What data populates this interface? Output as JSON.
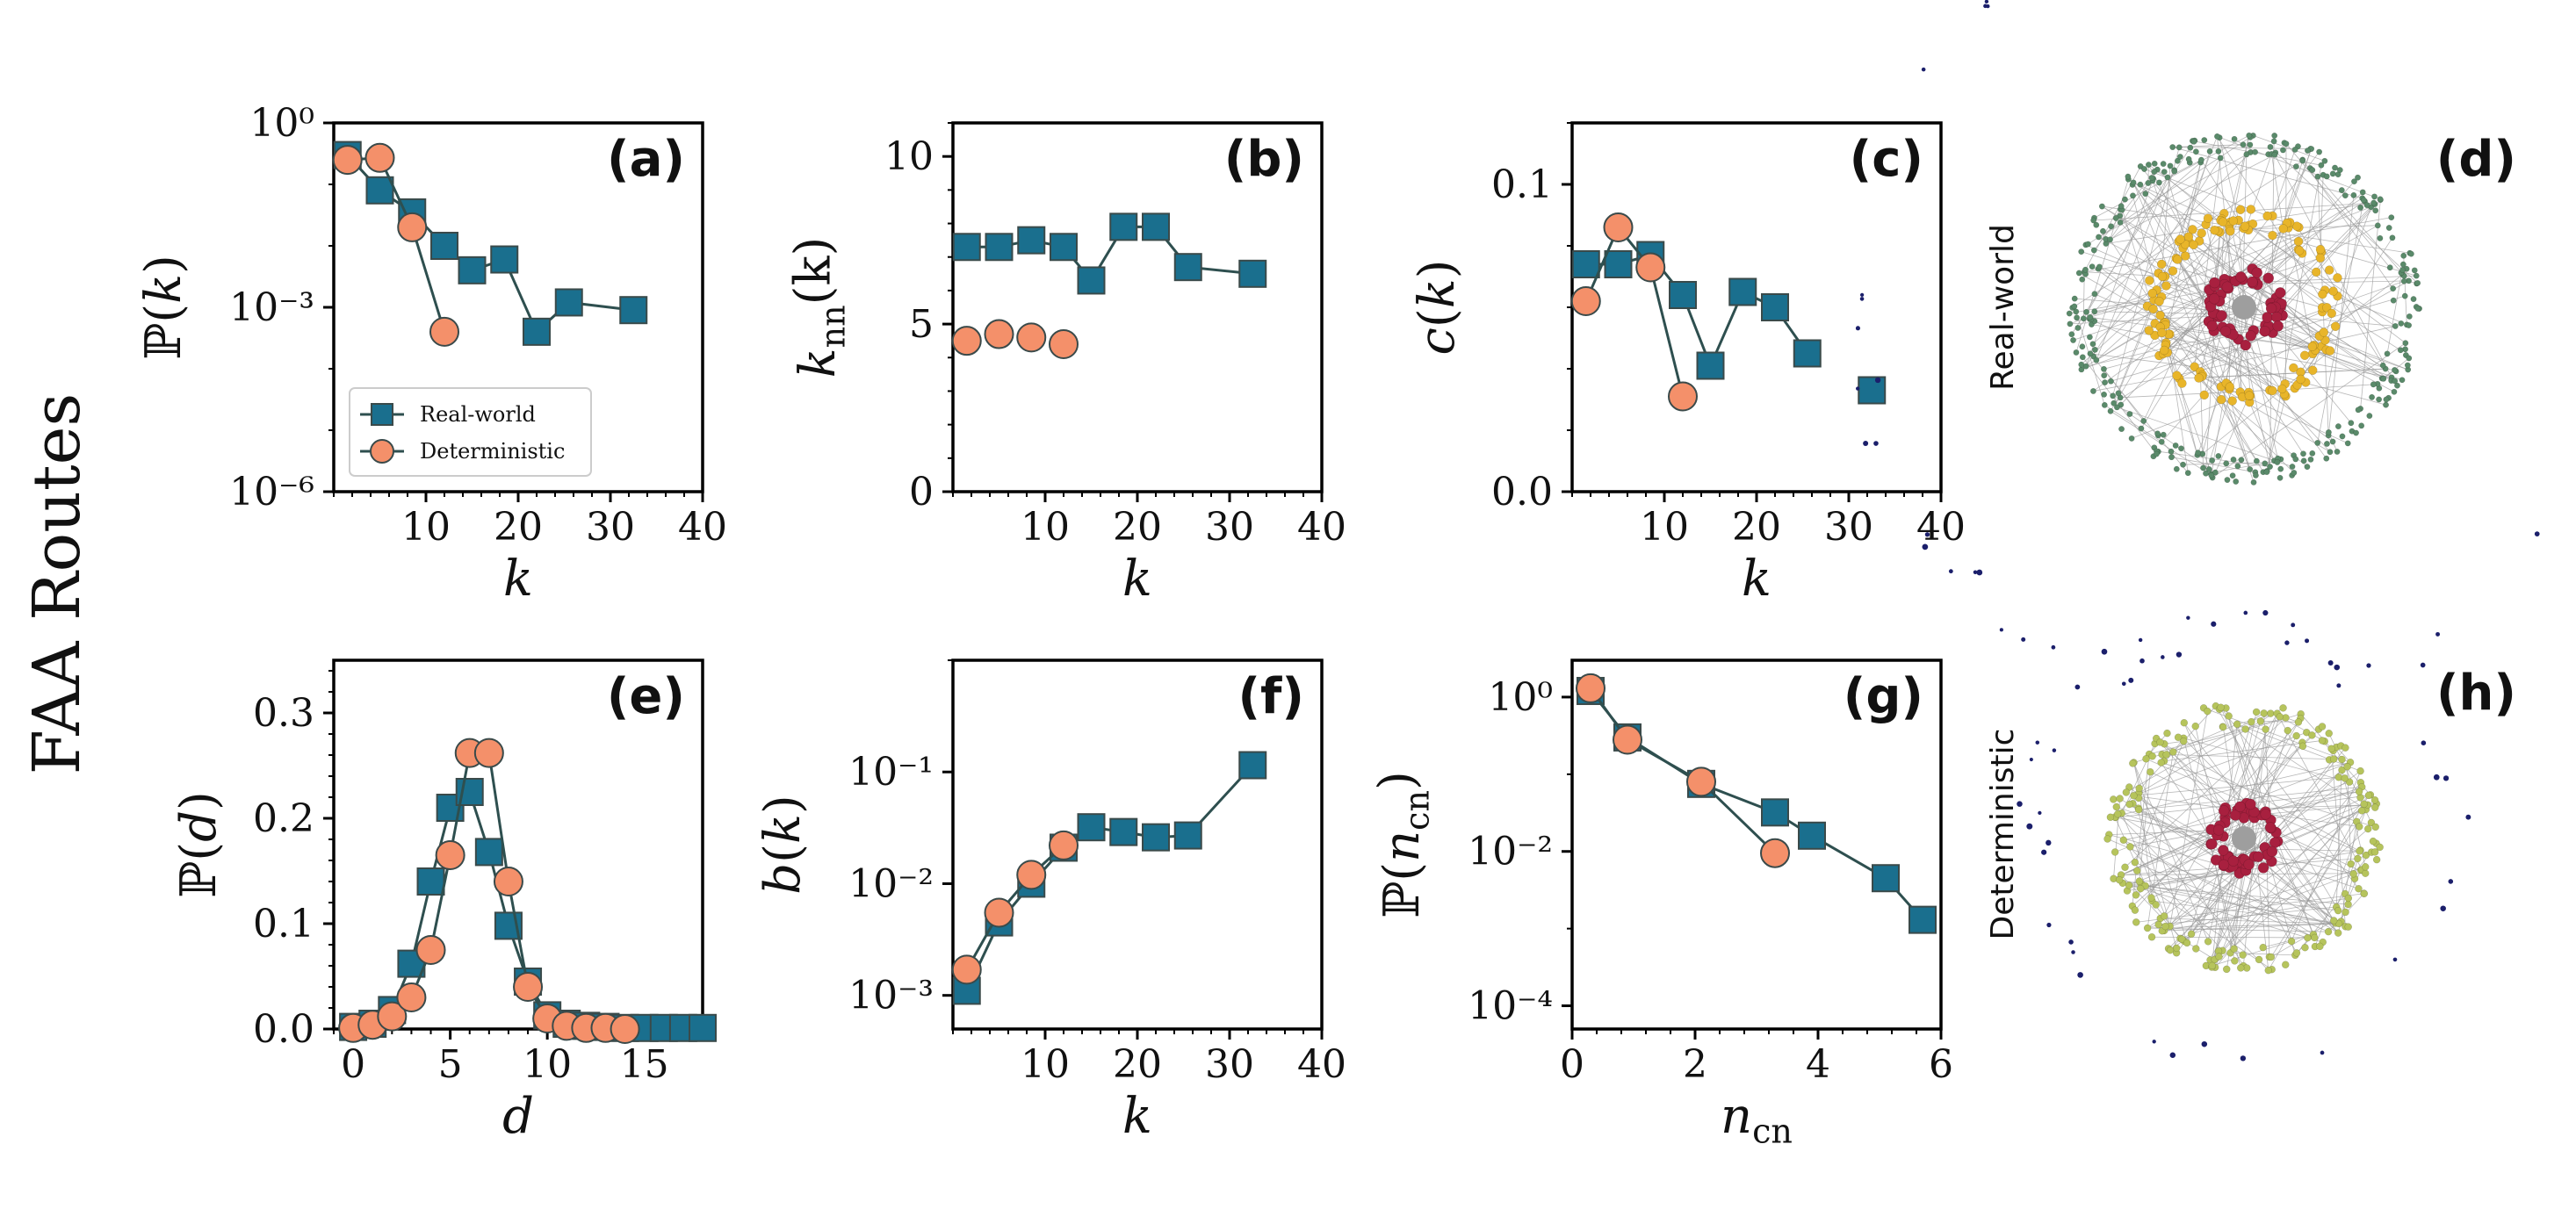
{
  "figure": {
    "row_label": "FAA Routes",
    "colors": {
      "real_world": "#1a6f8e",
      "deterministic": "#f4906a",
      "line": "#2e4f4f",
      "marker_edge": "#3a4a4a"
    }
  },
  "network_panels": [
    {
      "panel": "(d)",
      "side_label": "Real-world"
    },
    {
      "panel": "(h)",
      "side_label": "Deterministic"
    }
  ],
  "chart_data": [
    {
      "panel": "(a)",
      "type": "line",
      "xlabel": "k",
      "ylabel": "ℙ(k)",
      "xscale": "linear",
      "yscale": "log",
      "xlim": [
        0,
        40
      ],
      "ylim": [
        1e-06,
        1
      ],
      "xticks": [
        10,
        20,
        30,
        40
      ],
      "yticks": [
        1e-06,
        0.001,
        1
      ],
      "ytick_labels": [
        "10⁻⁶",
        "10⁻³",
        "10⁰"
      ],
      "legend": "lower-left",
      "series": [
        {
          "name": "Real-world",
          "marker": "square",
          "x": [
            1.5,
            5,
            8.5,
            12,
            15,
            18.5,
            22,
            25.5,
            32.5
          ],
          "y": [
            0.3,
            0.08,
            0.035,
            0.01,
            0.004,
            0.006,
            0.0004,
            0.0012,
            0.0009
          ]
        },
        {
          "name": "Deterministic",
          "marker": "circle",
          "x": [
            1.5,
            5,
            8.5,
            12
          ],
          "y": [
            0.25,
            0.27,
            0.02,
            0.0004
          ]
        }
      ]
    },
    {
      "panel": "(b)",
      "type": "line",
      "xlabel": "k",
      "ylabel": "k_nn(k)",
      "xscale": "linear",
      "yscale": "linear",
      "xlim": [
        0,
        40
      ],
      "ylim": [
        0,
        11
      ],
      "xticks": [
        10,
        20,
        30,
        40
      ],
      "yticks": [
        0,
        5,
        10
      ],
      "ytick_labels": [
        "0",
        "5",
        "10"
      ],
      "series": [
        {
          "name": "Real-world",
          "marker": "square",
          "x": [
            1.5,
            5,
            8.5,
            12,
            15,
            18.5,
            22,
            25.5,
            32.5
          ],
          "y": [
            7.3,
            7.3,
            7.5,
            7.3,
            6.3,
            7.9,
            7.9,
            6.7,
            6.5
          ],
          "segments": [
            [
              0,
              8
            ]
          ]
        },
        {
          "name": "Deterministic",
          "marker": "circle",
          "x": [
            1.5,
            5,
            8.5,
            12
          ],
          "y": [
            4.5,
            4.7,
            4.6,
            4.4
          ],
          "segments": []
        }
      ]
    },
    {
      "panel": "(c)",
      "type": "line",
      "xlabel": "k",
      "ylabel": "c(k)",
      "xscale": "linear",
      "yscale": "linear",
      "xlim": [
        0,
        40
      ],
      "ylim": [
        0,
        0.12
      ],
      "xticks": [
        10,
        20,
        30,
        40
      ],
      "yticks": [
        0,
        0.1
      ],
      "ytick_labels": [
        "0.0",
        "0.1"
      ],
      "series": [
        {
          "name": "Real-world",
          "marker": "square",
          "x": [
            1.5,
            5,
            8.5,
            12,
            15,
            18.5,
            22,
            25.5,
            32.5
          ],
          "y": [
            0.074,
            0.074,
            0.077,
            0.064,
            0.041,
            0.065,
            0.06,
            0.045,
            0.033
          ],
          "segments": [
            [
              0,
              7
            ]
          ]
        },
        {
          "name": "Deterministic",
          "marker": "circle",
          "x": [
            1.5,
            5,
            8.5,
            12
          ],
          "y": [
            0.062,
            0.086,
            0.073,
            0.031
          ]
        }
      ]
    },
    {
      "panel": "(e)",
      "type": "line",
      "xlabel": "d",
      "ylabel": "ℙ(d)",
      "xscale": "linear",
      "yscale": "linear",
      "xlim": [
        -1,
        18
      ],
      "ylim": [
        0,
        0.35
      ],
      "xticks": [
        0,
        5,
        10,
        15
      ],
      "yticks": [
        0,
        0.1,
        0.2,
        0.3
      ],
      "ytick_labels": [
        "0.0",
        "0.1",
        "0.2",
        "0.3"
      ],
      "series": [
        {
          "name": "Real-world",
          "marker": "square",
          "x": [
            0,
            1,
            2,
            3,
            4,
            5,
            6,
            7,
            8,
            9,
            10,
            11,
            12,
            13,
            14,
            15,
            16,
            17,
            18
          ],
          "y": [
            0.002,
            0.005,
            0.018,
            0.062,
            0.14,
            0.21,
            0.225,
            0.168,
            0.098,
            0.045,
            0.013,
            0.005,
            0.003,
            0.002,
            0.001,
            0.001,
            0.001,
            0.001,
            0.001
          ]
        },
        {
          "name": "Deterministic",
          "marker": "circle",
          "x": [
            0,
            1,
            2,
            3,
            4,
            5,
            6,
            7,
            8,
            9,
            10,
            11,
            12,
            13,
            14
          ],
          "y": [
            0.001,
            0.004,
            0.012,
            0.03,
            0.075,
            0.165,
            0.262,
            0.262,
            0.14,
            0.04,
            0.01,
            0.003,
            0.001,
            0.001,
            0.0
          ]
        }
      ]
    },
    {
      "panel": "(f)",
      "type": "line",
      "xlabel": "k",
      "ylabel": "b(k)",
      "xscale": "linear",
      "yscale": "log",
      "xlim": [
        0,
        40
      ],
      "ylim": [
        0.0005,
        1
      ],
      "xticks": [
        10,
        20,
        30,
        40
      ],
      "yticks": [
        0.001,
        0.01,
        0.1
      ],
      "ytick_labels": [
        "10⁻³",
        "10⁻²",
        "10⁻¹"
      ],
      "series": [
        {
          "name": "Real-world",
          "marker": "square",
          "x": [
            1.5,
            5,
            8.5,
            12,
            15,
            18.5,
            22,
            25.5,
            32.5
          ],
          "y": [
            0.0011,
            0.0045,
            0.01,
            0.021,
            0.032,
            0.029,
            0.026,
            0.027,
            0.115
          ]
        },
        {
          "name": "Deterministic",
          "marker": "circle",
          "x": [
            1.5,
            5,
            8.5,
            12
          ],
          "y": [
            0.0017,
            0.0055,
            0.012,
            0.022
          ]
        }
      ]
    },
    {
      "panel": "(g)",
      "type": "line",
      "xlabel": "n_cn",
      "ylabel": "ℙ(n_cn)",
      "xscale": "linear",
      "yscale": "log",
      "xlim": [
        0,
        6
      ],
      "ylim": [
        5e-05,
        3
      ],
      "xticks": [
        0,
        2,
        4,
        6
      ],
      "yticks": [
        0.0001,
        0.01,
        1
      ],
      "ytick_labels": [
        "10⁻⁴",
        "10⁻²",
        "10⁰"
      ],
      "series": [
        {
          "name": "Real-world",
          "marker": "square",
          "x": [
            0.3,
            0.9,
            2.1,
            3.3,
            3.9,
            5.1,
            5.7
          ],
          "y": [
            1.2,
            0.3,
            0.075,
            0.032,
            0.016,
            0.0045,
            0.0013
          ]
        },
        {
          "name": "Deterministic",
          "marker": "circle",
          "x": [
            0.3,
            0.9,
            2.1,
            3.3
          ],
          "y": [
            1.3,
            0.28,
            0.08,
            0.0095
          ]
        }
      ]
    }
  ]
}
